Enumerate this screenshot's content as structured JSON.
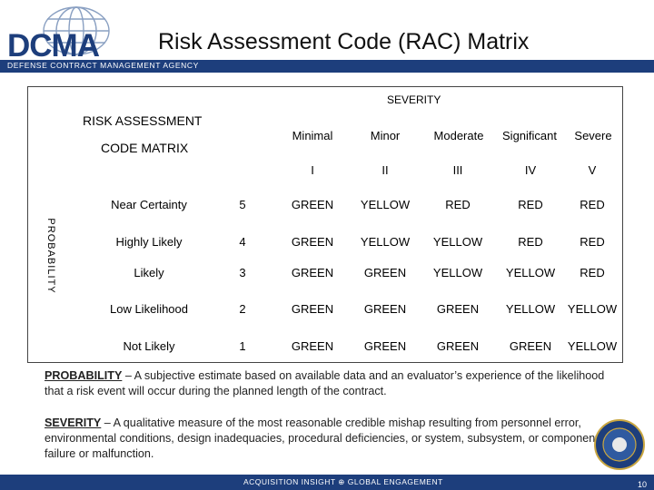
{
  "header": {
    "logo_text": "DCMA",
    "title": "Risk Assessment Code (RAC) Matrix",
    "agency_name": "DEFENSE CONTRACT MANAGEMENT AGENCY"
  },
  "matrix": {
    "severity_label": "SEVERITY",
    "title_line1": "RISK ASSESSMENT",
    "title_line2": "CODE MATRIX",
    "probability_label": "PROBABILITY",
    "columns": [
      {
        "name": "Minimal",
        "roman": "I"
      },
      {
        "name": "Minor",
        "roman": "II"
      },
      {
        "name": "Moderate",
        "roman": "III"
      },
      {
        "name": "Significant",
        "roman": "IV"
      },
      {
        "name": "Severe",
        "roman": "V"
      }
    ],
    "rows": [
      {
        "label": "Near Certainty",
        "level": "5",
        "cells": [
          "GREEN",
          "YELLOW",
          "RED",
          "RED",
          "RED"
        ]
      },
      {
        "label": "Highly Likely",
        "level": "4",
        "cells": [
          "GREEN",
          "YELLOW",
          "YELLOW",
          "RED",
          "RED"
        ]
      },
      {
        "label": "Likely",
        "level": "3",
        "cells": [
          "GREEN",
          "GREEN",
          "YELLOW",
          "YELLOW",
          "RED"
        ]
      },
      {
        "label": "Low Likelihood",
        "level": "2",
        "cells": [
          "GREEN",
          "GREEN",
          "GREEN",
          "YELLOW",
          "YELLOW"
        ]
      },
      {
        "label": "Not Likely",
        "level": "1",
        "cells": [
          "GREEN",
          "GREEN",
          "GREEN",
          "GREEN",
          "YELLOW"
        ]
      }
    ]
  },
  "definitions": {
    "probability_term": "PROBABILITY",
    "probability_text": " – A subjective estimate based on available data and an evaluator’s experience of the likelihood that a risk event will occur during the planned length of the contract.",
    "severity_term": "SEVERITY",
    "severity_text": " – A qualitative measure of the most reasonable credible mishap resulting from personnel error, environmental conditions, design inadequacies, procedural deficiencies, or system, subsystem, or component failure or malfunction."
  },
  "footer": {
    "tagline": "ACQUISITION  INSIGHT  ⊕ GLOBAL ENGAGEMENT",
    "page_number": "10"
  },
  "colors": {
    "brand_blue": "#1d3e7c"
  }
}
